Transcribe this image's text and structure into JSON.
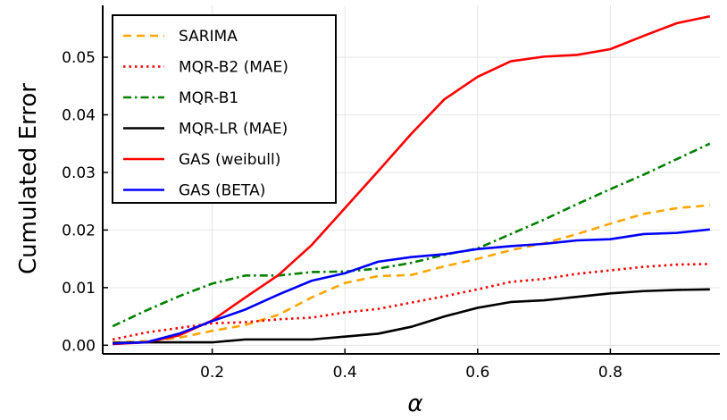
{
  "chart_data": {
    "type": "line",
    "xlabel": "α",
    "ylabel": "Cumulated Error",
    "xlim": [
      0.035,
      0.965
    ],
    "ylim": [
      -0.0015,
      0.059
    ],
    "x_ticks": [
      0.2,
      0.4,
      0.6,
      0.8
    ],
    "x_tick_labels": [
      "0.2",
      "0.4",
      "0.6",
      "0.8"
    ],
    "y_ticks": [
      0.0,
      0.01,
      0.02,
      0.03,
      0.04,
      0.05
    ],
    "y_tick_labels": [
      "0.00",
      "0.01",
      "0.02",
      "0.03",
      "0.04",
      "0.05"
    ],
    "grid": true,
    "legend_position": "top-left",
    "x": [
      0.05,
      0.1,
      0.15,
      0.2,
      0.25,
      0.3,
      0.35,
      0.4,
      0.45,
      0.5,
      0.55,
      0.6,
      0.65,
      0.7,
      0.75,
      0.8,
      0.85,
      0.9,
      0.95
    ],
    "series": [
      {
        "name": "SARIMA",
        "color": "#ffa500",
        "dash": "dash",
        "values": [
          0.0005,
          0.0007,
          0.0013,
          0.0025,
          0.0035,
          0.0053,
          0.0083,
          0.0108,
          0.012,
          0.0122,
          0.0137,
          0.015,
          0.0165,
          0.0177,
          0.0193,
          0.0211,
          0.0228,
          0.0238,
          0.0243
        ]
      },
      {
        "name": "MQR-B2 (MAE)",
        "color": "#ff0000",
        "dash": "dot",
        "values": [
          0.001,
          0.0022,
          0.003,
          0.0038,
          0.004,
          0.0045,
          0.0048,
          0.0057,
          0.0063,
          0.0074,
          0.0085,
          0.0097,
          0.011,
          0.0115,
          0.0124,
          0.013,
          0.0136,
          0.014,
          0.0141
        ]
      },
      {
        "name": "MQR-B1",
        "color": "#008000",
        "dash": "dashdot",
        "values": [
          0.0033,
          0.006,
          0.0085,
          0.0107,
          0.0121,
          0.0121,
          0.0127,
          0.0128,
          0.0133,
          0.0143,
          0.0157,
          0.0168,
          0.0193,
          0.0218,
          0.0245,
          0.0271,
          0.0296,
          0.0323,
          0.035
        ]
      },
      {
        "name": "MQR-LR (MAE)",
        "color": "#000000",
        "dash": "solid",
        "values": [
          0.0004,
          0.0005,
          0.0005,
          0.0005,
          0.001,
          0.001,
          0.001,
          0.0015,
          0.002,
          0.0032,
          0.005,
          0.0065,
          0.0075,
          0.0078,
          0.0084,
          0.009,
          0.0094,
          0.0096,
          0.0097
        ]
      },
      {
        "name": "GAS (weibull)",
        "color": "#ff0000",
        "dash": "solid",
        "values": [
          0.0002,
          0.0005,
          0.0017,
          0.0043,
          0.0083,
          0.0122,
          0.0174,
          0.0238,
          0.0302,
          0.0367,
          0.0427,
          0.0466,
          0.0493,
          0.0501,
          0.0504,
          0.0514,
          0.0537,
          0.0559,
          0.0571
        ]
      },
      {
        "name": "GAS (BETA)",
        "color": "#0000ff",
        "dash": "solid",
        "values": [
          0.0003,
          0.0005,
          0.002,
          0.0042,
          0.0062,
          0.0088,
          0.0112,
          0.0125,
          0.0145,
          0.0153,
          0.0158,
          0.0167,
          0.0172,
          0.0176,
          0.0182,
          0.0184,
          0.0193,
          0.0195,
          0.0201
        ]
      }
    ]
  }
}
